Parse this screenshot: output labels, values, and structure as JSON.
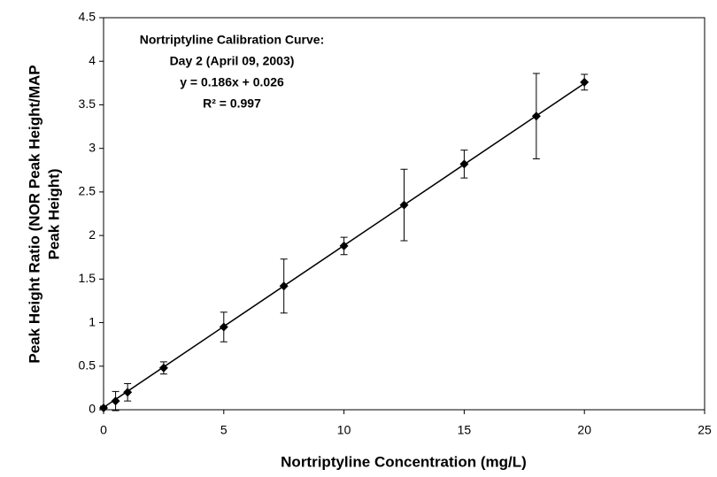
{
  "chart_data": {
    "type": "scatter",
    "annotations": [
      "Nortriptyline Calibration Curve:",
      "Day 2 (April 09, 2003)",
      "y = 0.186x + 0.026",
      "R² = 0.997"
    ],
    "xlabel": "Nortriptyline Concentration (mg/L)",
    "ylabel": [
      "Peak Height Ratio (NOR Peak Height/MAP",
      "Peak Height)"
    ],
    "x": [
      0,
      0.5,
      1,
      2.5,
      5,
      7.5,
      10,
      12.5,
      15,
      18,
      20
    ],
    "series": [
      {
        "color": "#000000",
        "values": [
          0.02,
          0.1,
          0.2,
          0.48,
          0.95,
          1.42,
          1.88,
          2.35,
          2.82,
          3.37,
          3.76
        ],
        "errors": [
          0.02,
          0.11,
          0.1,
          0.07,
          0.17,
          0.31,
          0.1,
          0.41,
          0.16,
          0.49,
          0.09
        ]
      }
    ],
    "trendline": {
      "x": [
        0,
        20
      ],
      "values": [
        0.026,
        3.746
      ]
    },
    "xlim": [
      0,
      25
    ],
    "xticks": [
      0,
      5,
      10,
      15,
      20,
      25
    ],
    "ylim": [
      0,
      4.5
    ],
    "yticks": [
      0,
      0.5,
      1,
      1.5,
      2,
      2.5,
      3,
      3.5,
      4,
      4.5
    ],
    "grid": false
  }
}
